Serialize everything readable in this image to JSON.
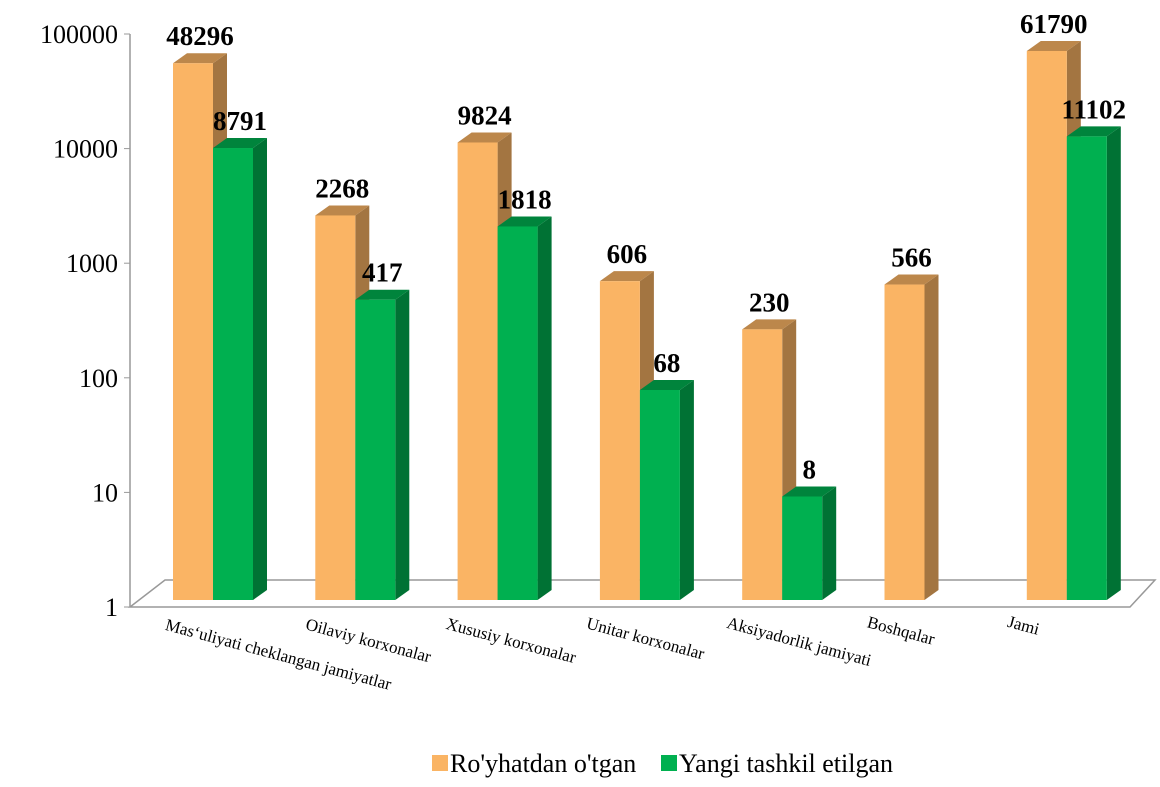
{
  "chart_data": {
    "type": "bar",
    "log_scale": true,
    "categories": [
      "Mas‘uliyati cheklangan jamiyatlar",
      "Oilaviy korxonalar",
      "Xususiy korxonalar",
      "Unitar korxonalar",
      "Aksiyadorlik jamiyati",
      "Boshqalar",
      "Jami"
    ],
    "series": [
      {
        "name": "Ro'yhatdan o'tgan",
        "color": "#fab464",
        "values": [
          48296,
          2268,
          9824,
          606,
          230,
          566,
          61790
        ]
      },
      {
        "name": "Yangi tashkil etilgan",
        "color": "#00b050",
        "values": [
          8791,
          417,
          1818,
          68,
          8,
          null,
          11102
        ]
      }
    ],
    "ylim": [
      1,
      100000
    ],
    "yticks": [
      1,
      10,
      100,
      1000,
      10000,
      100000
    ]
  }
}
